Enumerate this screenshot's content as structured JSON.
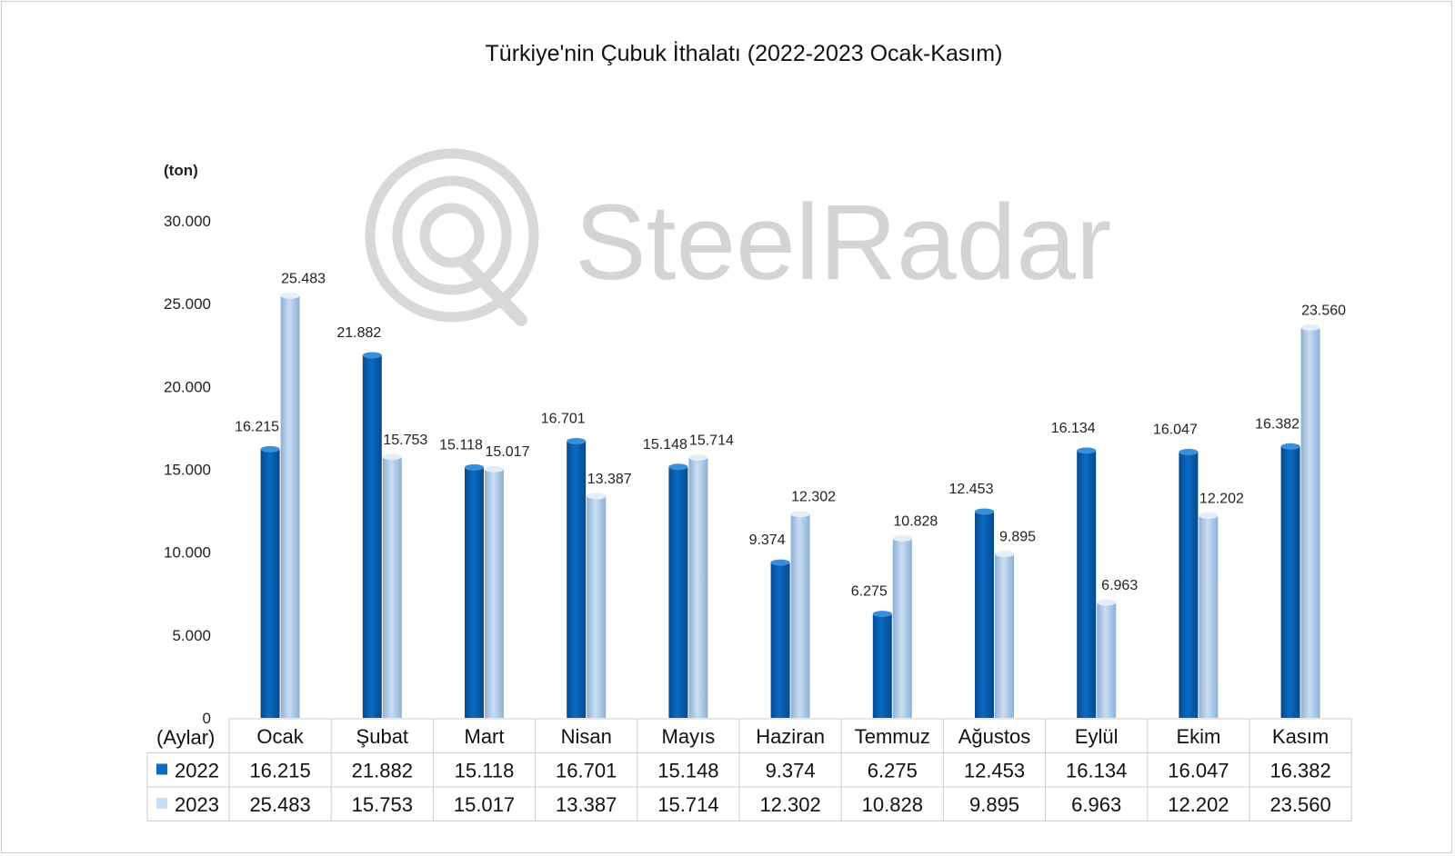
{
  "watermark": "SteelRadar",
  "colors": {
    "s2022": "#0b6bc4",
    "s2022_dark": "#064a8c",
    "s2023": "#c9def3",
    "s2023_dark": "#8eb0d2",
    "grid": "#c9ced6"
  },
  "chart_data": {
    "type": "bar",
    "title": "Türkiye'nin Çubuk İthalatı (2022-2023 Ocak-Kasım)",
    "ylabel": "(ton)",
    "xlabel": "(Aylar)",
    "ylim": [
      0,
      30000
    ],
    "yticks": [
      "0",
      "5.000",
      "10.000",
      "15.000",
      "20.000",
      "25.000",
      "30.000"
    ],
    "categories": [
      "Ocak",
      "Şubat",
      "Mart",
      "Nisan",
      "Mayıs",
      "Haziran",
      "Temmuz",
      "Ağustos",
      "Eylül",
      "Ekim",
      "Kasım"
    ],
    "series": [
      {
        "name": "2022",
        "values": [
          16215,
          21882,
          15118,
          16701,
          15148,
          9374,
          6275,
          12453,
          16134,
          16047,
          16382
        ],
        "labels": [
          "16.215",
          "21.882",
          "15.118",
          "16.701",
          "15.148",
          "9.374",
          "6.275",
          "12.453",
          "16.134",
          "16.047",
          "16.382"
        ]
      },
      {
        "name": "2023",
        "values": [
          25483,
          15753,
          15017,
          13387,
          15714,
          12302,
          10828,
          9895,
          6963,
          12202,
          23560
        ],
        "labels": [
          "25.483",
          "15.753",
          "15.017",
          "13.387",
          "15.714",
          "12.302",
          "10.828",
          "9.895",
          "6.963",
          "12.202",
          "23.560"
        ]
      }
    ],
    "legend": "data-table",
    "grid": false
  }
}
